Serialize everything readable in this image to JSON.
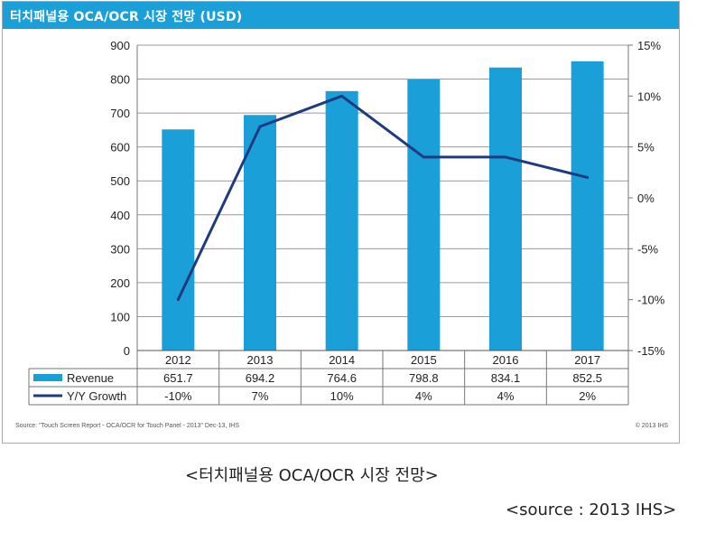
{
  "title": "터치패널용 OCA/OCR 시장 전망 (USD)",
  "colors": {
    "accent": "#1a9fd8",
    "bar": "#1a9fd8",
    "line": "#1f3b80"
  },
  "chart_data": {
    "type": "bar+line",
    "categories": [
      "2012",
      "2013",
      "2014",
      "2015",
      "2016",
      "2017"
    ],
    "series": [
      {
        "name": "Revenue",
        "type": "bar",
        "axis": "left",
        "values": [
          651.7,
          694.2,
          764.6,
          798.8,
          834.1,
          852.5
        ],
        "labels": [
          "651.7",
          "694.2",
          "764.6",
          "798.8",
          "834.1",
          "852.5"
        ]
      },
      {
        "name": "Y/Y Growth",
        "type": "line",
        "axis": "right",
        "values": [
          -10,
          7,
          10,
          4,
          4,
          2
        ],
        "labels": [
          "-10%",
          "7%",
          "10%",
          "4%",
          "4%",
          "2%"
        ]
      }
    ],
    "left_axis": {
      "ylim": [
        0,
        900
      ],
      "ticks": [
        "0",
        "100",
        "200",
        "300",
        "400",
        "500",
        "600",
        "700",
        "800",
        "900"
      ]
    },
    "right_axis": {
      "ylim": [
        -15,
        15
      ],
      "ticks": [
        "-15%",
        "-10%",
        "-5%",
        "0%",
        "5%",
        "10%",
        "15%"
      ]
    },
    "grid": true,
    "legend": "data-table-below"
  },
  "footer": {
    "source": "Source: \"Touch Screen Report - OCA/OCR for Touch Panel - 2013\" Dec-13, IHS",
    "copyright": "© 2013 IHS"
  },
  "caption": "<터치패널용 OCA/OCR 시장 전망>",
  "source_note": "<source : 2013 IHS>"
}
